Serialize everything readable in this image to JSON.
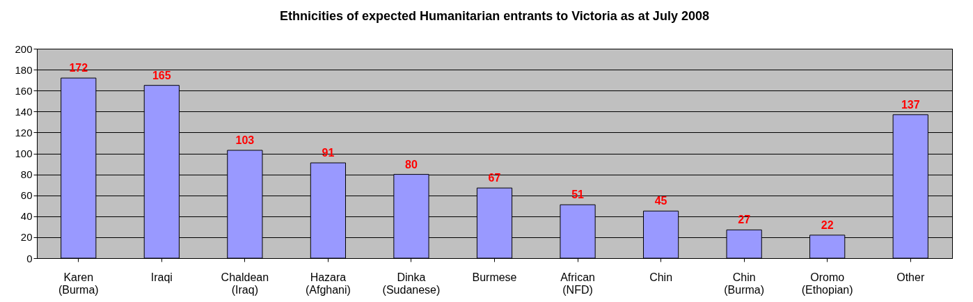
{
  "chart_data": {
    "type": "bar",
    "title": "Ethnicities of expected Humanitarian entrants to Victoria as at July 2008",
    "categories": [
      "Karen (Burma)",
      "Iraqi",
      "Chaldean (Iraq)",
      "Hazara (Afghani)",
      "Dinka (Sudanese)",
      "Burmese",
      "African (NFD)",
      "Chin",
      "Chin (Burma)",
      "Oromo (Ethopian)",
      "Other"
    ],
    "values": [
      172,
      165,
      103,
      91,
      80,
      67,
      51,
      45,
      27,
      22,
      137
    ],
    "color": "#9999ff",
    "ylim": [
      0,
      200
    ],
    "yticks": [
      0,
      20,
      40,
      60,
      80,
      100,
      120,
      140,
      160,
      180,
      200
    ],
    "grid": "y",
    "data_labels": true
  }
}
